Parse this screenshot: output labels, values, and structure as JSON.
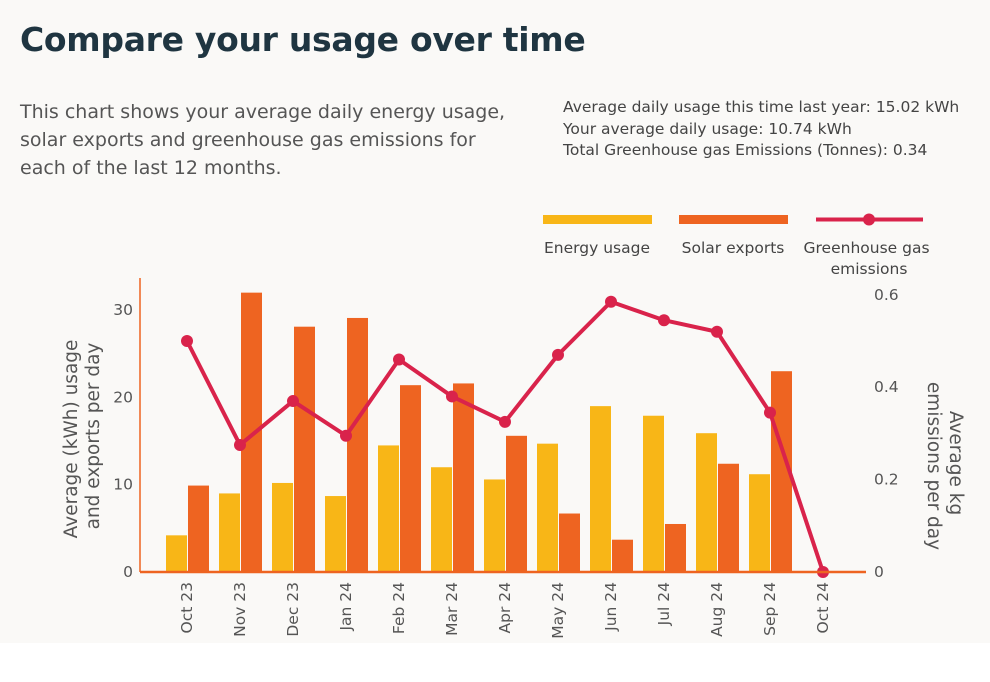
{
  "header": {
    "title": "Compare your usage over time",
    "description": "This chart shows your average daily energy usage, solar exports and greenhouse gas emissions for each of the last 12 months."
  },
  "stats": {
    "last_year": "Average daily usage this time last year: 15.02 kWh",
    "average": "Your average daily usage: 10.74 kWh",
    "emissions": "Total Greenhouse gas Emissions (Tonnes): 0.34"
  },
  "colors": {
    "energy": "#f8b617",
    "solar": "#ee6421",
    "emissions": "#d9234b",
    "axis": "#ee6421",
    "text": "#555555"
  },
  "chart_data": {
    "type": "bar",
    "title": "",
    "categories": [
      "Oct 23",
      "Nov 23",
      "Dec 23",
      "Jan 24",
      "Feb 24",
      "Mar 24",
      "Apr 24",
      "May 24",
      "Jun 24",
      "Jul 24",
      "Aug 24",
      "Sep 24",
      "Oct 24"
    ],
    "series": [
      {
        "name": "Energy usage",
        "type": "bar",
        "axis": "left",
        "values": [
          4.2,
          9.0,
          10.2,
          8.7,
          14.5,
          12.0,
          10.6,
          14.7,
          19.0,
          17.9,
          15.9,
          11.2,
          null
        ]
      },
      {
        "name": "Solar exports",
        "type": "bar",
        "axis": "left",
        "values": [
          9.9,
          32.0,
          28.1,
          29.1,
          21.4,
          21.6,
          15.6,
          6.7,
          3.7,
          5.5,
          12.4,
          23.0,
          null
        ]
      },
      {
        "name": "Greenhouse gas emissions",
        "type": "line",
        "axis": "right",
        "values": [
          0.5,
          0.275,
          0.37,
          0.295,
          0.46,
          0.38,
          0.325,
          0.47,
          0.585,
          0.545,
          0.52,
          0.345,
          0.0
        ]
      }
    ],
    "legend": [
      "Energy usage",
      "Solar exports",
      "Greenhouse gas emissions"
    ],
    "ylabel": "Average (kWh) usage and exports per day",
    "ylabel_lines": [
      "Average (kWh) usage",
      "and exports per day"
    ],
    "y2label": "Average kg emissions per day",
    "y2label_lines": [
      "Average kg",
      "emissions per day"
    ],
    "yticks": [
      "0",
      "10",
      "20",
      "30"
    ],
    "y2ticks": [
      "0",
      "0.2",
      "0.4",
      "0.6"
    ],
    "ylim": [
      0,
      32
    ],
    "y2lim": [
      0,
      0.6
    ]
  }
}
